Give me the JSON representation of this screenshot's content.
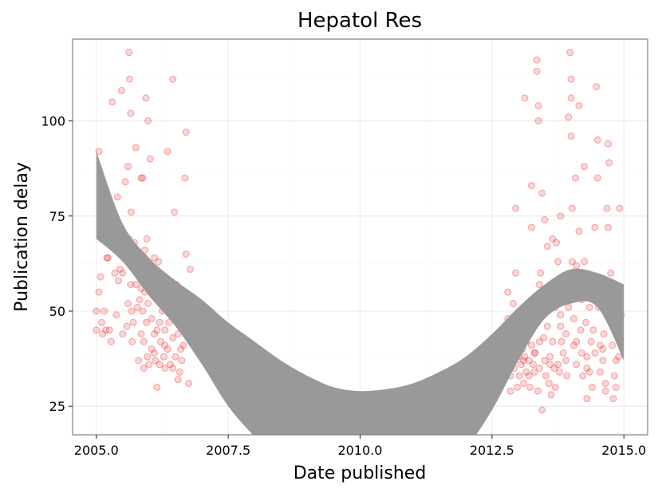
{
  "chart_data": {
    "type": "scatter",
    "title": "Hepatol Res",
    "xlabel": "Date published",
    "ylabel": "Publication delay",
    "xlim": [
      2004.55,
      2015.45
    ],
    "ylim": [
      17.5,
      121.5
    ],
    "x_ticks": [
      2005.0,
      2007.5,
      2010.0,
      2012.5,
      2015.0
    ],
    "x_tick_labels": [
      "2005.0",
      "2007.5",
      "2010.0",
      "2012.5",
      "2015.0"
    ],
    "y_ticks": [
      25,
      50,
      75,
      100
    ],
    "y_tick_labels": [
      "25",
      "50",
      "75",
      "100"
    ],
    "grid": true,
    "point_color": "#e41a1c",
    "band_color": "#999999",
    "points": [
      [
        2005.0,
        50
      ],
      [
        2005.0,
        45
      ],
      [
        2005.05,
        92
      ],
      [
        2005.05,
        55
      ],
      [
        2005.08,
        59
      ],
      [
        2005.1,
        47
      ],
      [
        2005.12,
        44
      ],
      [
        2005.15,
        50
      ],
      [
        2005.18,
        45
      ],
      [
        2005.2,
        64
      ],
      [
        2005.22,
        64
      ],
      [
        2005.25,
        45
      ],
      [
        2005.28,
        42
      ],
      [
        2005.3,
        105
      ],
      [
        2005.35,
        60
      ],
      [
        2005.38,
        49
      ],
      [
        2005.4,
        80
      ],
      [
        2005.42,
        58
      ],
      [
        2005.45,
        61
      ],
      [
        2005.48,
        108
      ],
      [
        2005.5,
        60
      ],
      [
        2005.5,
        44
      ],
      [
        2005.52,
        68
      ],
      [
        2005.55,
        84
      ],
      [
        2005.58,
        46
      ],
      [
        2005.6,
        88
      ],
      [
        2005.6,
        52
      ],
      [
        2005.62,
        118
      ],
      [
        2005.62,
        69
      ],
      [
        2005.63,
        111
      ],
      [
        2005.65,
        102
      ],
      [
        2005.65,
        63
      ],
      [
        2005.65,
        57
      ],
      [
        2005.66,
        76
      ],
      [
        2005.67,
        50
      ],
      [
        2005.68,
        42
      ],
      [
        2005.7,
        47
      ],
      [
        2005.72,
        62
      ],
      [
        2005.72,
        68
      ],
      [
        2005.75,
        93
      ],
      [
        2005.75,
        57
      ],
      [
        2005.78,
        51
      ],
      [
        2005.8,
        37
      ],
      [
        2005.82,
        64
      ],
      [
        2005.82,
        53
      ],
      [
        2005.85,
        85
      ],
      [
        2005.85,
        56
      ],
      [
        2005.85,
        44
      ],
      [
        2005.87,
        60
      ],
      [
        2005.88,
        85
      ],
      [
        2005.88,
        50
      ],
      [
        2005.9,
        42
      ],
      [
        2005.9,
        35
      ],
      [
        2005.92,
        66
      ],
      [
        2005.92,
        55
      ],
      [
        2005.94,
        106
      ],
      [
        2005.95,
        47
      ],
      [
        2005.96,
        69
      ],
      [
        2005.97,
        38
      ],
      [
        2005.98,
        100
      ],
      [
        2005.98,
        52
      ],
      [
        2006.0,
        36
      ],
      [
        2006.02,
        90
      ],
      [
        2006.02,
        58
      ],
      [
        2006.05,
        48
      ],
      [
        2006.05,
        40
      ],
      [
        2006.08,
        54
      ],
      [
        2006.1,
        64
      ],
      [
        2006.1,
        44
      ],
      [
        2006.12,
        37
      ],
      [
        2006.15,
        45
      ],
      [
        2006.15,
        30
      ],
      [
        2006.18,
        63
      ],
      [
        2006.2,
        56
      ],
      [
        2006.2,
        47
      ],
      [
        2006.22,
        42
      ],
      [
        2006.25,
        50
      ],
      [
        2006.28,
        38
      ],
      [
        2006.3,
        45
      ],
      [
        2006.3,
        35
      ],
      [
        2006.32,
        53
      ],
      [
        2006.35,
        92
      ],
      [
        2006.35,
        40
      ],
      [
        2006.38,
        47
      ],
      [
        2006.4,
        36
      ],
      [
        2006.42,
        55
      ],
      [
        2006.45,
        43
      ],
      [
        2006.45,
        111
      ],
      [
        2006.48,
        76
      ],
      [
        2006.5,
        49
      ],
      [
        2006.5,
        38
      ],
      [
        2006.52,
        57
      ],
      [
        2006.55,
        44
      ],
      [
        2006.58,
        34
      ],
      [
        2006.6,
        46
      ],
      [
        2006.62,
        53
      ],
      [
        2006.62,
        37
      ],
      [
        2006.65,
        41
      ],
      [
        2006.68,
        85
      ],
      [
        2006.7,
        97
      ],
      [
        2006.7,
        65
      ],
      [
        2006.72,
        47
      ],
      [
        2006.75,
        31
      ],
      [
        2006.78,
        61
      ],
      [
        2006.2,
        36
      ],
      [
        2006.3,
        41
      ],
      [
        2006.45,
        35
      ],
      [
        2006.55,
        32
      ],
      [
        2006.1,
        39
      ],
      [
        2006.6,
        40
      ],
      [
        2012.8,
        48
      ],
      [
        2012.82,
        37
      ],
      [
        2012.85,
        33
      ],
      [
        2012.85,
        29
      ],
      [
        2012.88,
        44
      ],
      [
        2012.9,
        52
      ],
      [
        2012.92,
        35
      ],
      [
        2012.95,
        77
      ],
      [
        2012.95,
        40
      ],
      [
        2012.98,
        30
      ],
      [
        2013.0,
        38
      ],
      [
        2013.02,
        33
      ],
      [
        2013.05,
        45
      ],
      [
        2013.05,
        36
      ],
      [
        2013.08,
        40
      ],
      [
        2013.1,
        31
      ],
      [
        2013.12,
        106
      ],
      [
        2013.12,
        38
      ],
      [
        2013.15,
        42
      ],
      [
        2013.15,
        34
      ],
      [
        2013.18,
        47
      ],
      [
        2013.2,
        37
      ],
      [
        2013.22,
        30
      ],
      [
        2013.25,
        83
      ],
      [
        2013.25,
        41
      ],
      [
        2013.28,
        36
      ],
      [
        2013.3,
        51
      ],
      [
        2013.3,
        34
      ],
      [
        2013.32,
        39
      ],
      [
        2013.35,
        116
      ],
      [
        2013.35,
        113
      ],
      [
        2013.37,
        29
      ],
      [
        2013.38,
        100
      ],
      [
        2013.38,
        104
      ],
      [
        2013.4,
        35
      ],
      [
        2013.42,
        60
      ],
      [
        2013.45,
        24
      ],
      [
        2013.45,
        81
      ],
      [
        2013.48,
        43
      ],
      [
        2013.5,
        37
      ],
      [
        2013.5,
        74
      ],
      [
        2013.52,
        33
      ],
      [
        2013.55,
        46
      ],
      [
        2013.58,
        31
      ],
      [
        2013.6,
        38
      ],
      [
        2013.62,
        28
      ],
      [
        2013.65,
        69
      ],
      [
        2013.65,
        42
      ],
      [
        2013.68,
        35
      ],
      [
        2013.7,
        51
      ],
      [
        2013.72,
        68
      ],
      [
        2013.75,
        63
      ],
      [
        2013.75,
        36
      ],
      [
        2013.78,
        34
      ],
      [
        2013.8,
        75
      ],
      [
        2013.8,
        46
      ],
      [
        2013.82,
        42
      ],
      [
        2013.85,
        39
      ],
      [
        2013.88,
        56
      ],
      [
        2013.9,
        44
      ],
      [
        2013.92,
        33
      ],
      [
        2013.95,
        101
      ],
      [
        2013.95,
        51
      ],
      [
        2013.98,
        118
      ],
      [
        2014.0,
        111
      ],
      [
        2014.0,
        106
      ],
      [
        2014.0,
        96
      ],
      [
        2014.02,
        77
      ],
      [
        2014.02,
        63
      ],
      [
        2014.05,
        48
      ],
      [
        2014.05,
        41
      ],
      [
        2014.08,
        85
      ],
      [
        2014.1,
        62
      ],
      [
        2014.1,
        36
      ],
      [
        2014.12,
        58
      ],
      [
        2014.15,
        104
      ],
      [
        2014.15,
        71
      ],
      [
        2014.18,
        45
      ],
      [
        2014.2,
        53
      ],
      [
        2014.2,
        39
      ],
      [
        2014.22,
        33
      ],
      [
        2014.25,
        88
      ],
      [
        2014.25,
        63
      ],
      [
        2014.28,
        47
      ],
      [
        2014.3,
        38
      ],
      [
        2014.3,
        27
      ],
      [
        2014.32,
        59
      ],
      [
        2014.35,
        51
      ],
      [
        2014.35,
        34
      ],
      [
        2014.38,
        42
      ],
      [
        2014.4,
        55
      ],
      [
        2014.4,
        30
      ],
      [
        2014.42,
        45
      ],
      [
        2014.45,
        72
      ],
      [
        2014.45,
        39
      ],
      [
        2014.48,
        109
      ],
      [
        2014.5,
        95
      ],
      [
        2014.5,
        85
      ],
      [
        2014.52,
        51
      ],
      [
        2014.55,
        41
      ],
      [
        2014.55,
        34
      ],
      [
        2014.58,
        58
      ],
      [
        2014.6,
        37
      ],
      [
        2014.62,
        44
      ],
      [
        2014.65,
        31
      ],
      [
        2014.68,
        77
      ],
      [
        2014.7,
        94
      ],
      [
        2014.7,
        72
      ],
      [
        2014.72,
        89
      ],
      [
        2014.75,
        60
      ],
      [
        2014.75,
        56
      ],
      [
        2014.78,
        41
      ],
      [
        2014.8,
        27
      ],
      [
        2014.82,
        33
      ],
      [
        2014.85,
        37
      ],
      [
        2014.88,
        45
      ],
      [
        2014.9,
        38
      ],
      [
        2014.92,
        77
      ],
      [
        2014.95,
        49
      ],
      [
        2012.75,
        41
      ],
      [
        2012.78,
        35
      ],
      [
        2012.9,
        42
      ],
      [
        2013.0,
        46
      ],
      [
        2013.1,
        37
      ],
      [
        2013.2,
        33
      ],
      [
        2013.3,
        39
      ],
      [
        2013.4,
        42
      ],
      [
        2013.6,
        36
      ],
      [
        2013.7,
        30
      ],
      [
        2013.9,
        37
      ],
      [
        2014.1,
        42
      ],
      [
        2014.3,
        35
      ],
      [
        2014.6,
        40
      ],
      [
        2014.65,
        29
      ],
      [
        2014.85,
        30
      ],
      [
        2013.55,
        67
      ],
      [
        2013.4,
        57
      ],
      [
        2012.95,
        60
      ],
      [
        2014.45,
        59
      ],
      [
        2013.8,
        49
      ],
      [
        2012.8,
        55
      ],
      [
        2013.25,
        72
      ]
    ],
    "smooth_band": {
      "x": [
        2005.0,
        2005.5,
        2006.0,
        2006.5,
        2007.0,
        2007.5,
        2008.0,
        2008.5,
        2009.0,
        2009.5,
        2010.0,
        2010.5,
        2011.0,
        2011.5,
        2012.0,
        2012.5,
        2013.0,
        2013.5,
        2014.0,
        2014.5,
        2015.0
      ],
      "upper": [
        92,
        73,
        64,
        58,
        53,
        47,
        42,
        37,
        33,
        30,
        29,
        29.5,
        31,
        34,
        38,
        44,
        51,
        57,
        61,
        60,
        57
      ],
      "lower": [
        69,
        63,
        54,
        46,
        36,
        25,
        17,
        10,
        5,
        3,
        3,
        4,
        6,
        9,
        14,
        24,
        37,
        48,
        52,
        51,
        37
      ]
    }
  }
}
